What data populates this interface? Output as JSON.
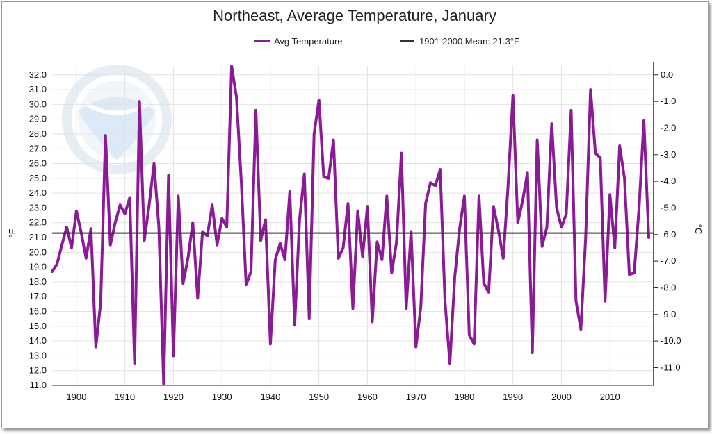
{
  "chart_data": {
    "type": "line",
    "title": "Northeast, Average Temperature, January",
    "ylabel_left": "°F",
    "ylabel_right": "°C",
    "ylim": [
      11.0,
      32.6
    ],
    "xlim": [
      1895,
      2019
    ],
    "y_ticks": [
      "11.0",
      "12.0",
      "13.0",
      "14.0",
      "15.0",
      "16.0",
      "17.0",
      "18.0",
      "19.0",
      "20.0",
      "21.0",
      "22.0",
      "23.0",
      "24.0",
      "25.0",
      "26.0",
      "27.0",
      "28.0",
      "29.0",
      "30.0",
      "31.0",
      "32.0"
    ],
    "y_right_ticks": [
      "0.0",
      "-1.0",
      "-2.0",
      "-3.0",
      "-4.0",
      "-5.0",
      "-6.0",
      "-7.0",
      "-8.0",
      "-9.0",
      "-10.0",
      "-11.0"
    ],
    "x_ticks": [
      "1900",
      "1910",
      "1920",
      "1930",
      "1940",
      "1950",
      "1960",
      "1970",
      "1980",
      "1990",
      "2000",
      "2010"
    ],
    "grid": true,
    "legend": "top-center",
    "mean_line": {
      "label": "1901-2000 Mean: 21.3°F",
      "value": 21.3,
      "color": "#333333"
    },
    "series": [
      {
        "name": "Avg Temperature",
        "color": "#8a1a96",
        "x": [
          1895,
          1896,
          1897,
          1898,
          1899,
          1900,
          1901,
          1902,
          1903,
          1904,
          1905,
          1906,
          1907,
          1908,
          1909,
          1910,
          1911,
          1912,
          1913,
          1914,
          1915,
          1916,
          1917,
          1918,
          1919,
          1920,
          1921,
          1922,
          1923,
          1924,
          1925,
          1926,
          1927,
          1928,
          1929,
          1930,
          1931,
          1932,
          1933,
          1934,
          1935,
          1936,
          1937,
          1938,
          1939,
          1940,
          1941,
          1942,
          1943,
          1944,
          1945,
          1946,
          1947,
          1948,
          1949,
          1950,
          1951,
          1952,
          1953,
          1954,
          1955,
          1956,
          1957,
          1958,
          1959,
          1960,
          1961,
          1962,
          1963,
          1964,
          1965,
          1966,
          1967,
          1968,
          1969,
          1970,
          1971,
          1972,
          1973,
          1974,
          1975,
          1976,
          1977,
          1978,
          1979,
          1980,
          1981,
          1982,
          1983,
          1984,
          1985,
          1986,
          1987,
          1988,
          1989,
          1990,
          1991,
          1992,
          1993,
          1994,
          1995,
          1996,
          1997,
          1998,
          1999,
          2000,
          2001,
          2002,
          2003,
          2004,
          2005,
          2006,
          2007,
          2008,
          2009,
          2010,
          2011,
          2012,
          2013,
          2014,
          2015,
          2016,
          2017,
          2018
        ],
        "values": [
          18.7,
          19.2,
          20.5,
          21.7,
          20.3,
          22.8,
          21.3,
          19.6,
          21.6,
          13.6,
          16.6,
          27.9,
          20.5,
          22.0,
          23.2,
          22.6,
          23.7,
          12.5,
          30.2,
          20.8,
          23.2,
          26.0,
          21.7,
          11.1,
          25.2,
          13.0,
          23.8,
          17.9,
          19.6,
          22.0,
          16.9,
          21.4,
          21.1,
          23.2,
          20.5,
          22.3,
          21.7,
          32.6,
          30.5,
          24.7,
          17.8,
          18.7,
          29.6,
          20.8,
          22.2,
          13.8,
          19.5,
          20.6,
          19.5,
          24.1,
          15.1,
          22.2,
          25.3,
          15.5,
          28.0,
          30.3,
          25.1,
          25.0,
          27.6,
          19.6,
          20.3,
          23.3,
          16.2,
          22.8,
          19.7,
          23.1,
          15.3,
          20.7,
          19.5,
          23.8,
          18.6,
          20.7,
          26.7,
          16.2,
          21.4,
          13.6,
          16.3,
          23.3,
          24.7,
          24.5,
          25.6,
          16.7,
          12.5,
          18.3,
          21.6,
          23.8,
          14.4,
          13.8,
          23.8,
          17.9,
          17.3,
          23.1,
          21.5,
          19.6,
          24.5,
          30.6,
          22.0,
          23.5,
          25.4,
          13.2,
          27.6,
          20.4,
          21.7,
          28.7,
          23.0,
          21.7,
          22.6,
          29.6,
          16.7,
          14.8,
          21.0,
          31.0,
          26.7,
          26.4,
          16.7,
          23.9,
          20.3,
          27.2,
          25.0,
          18.5,
          18.6,
          23.0,
          28.9,
          21.0
        ]
      }
    ]
  }
}
